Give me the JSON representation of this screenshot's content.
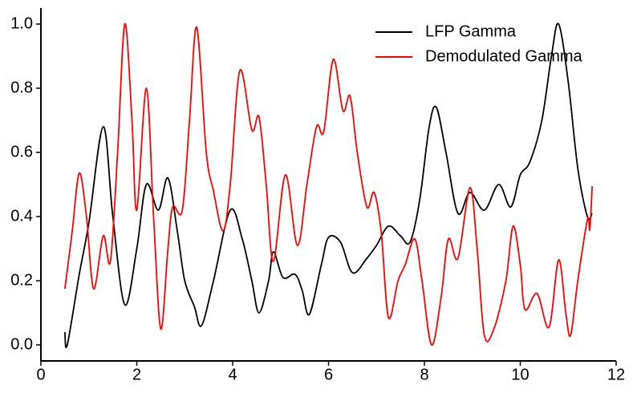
{
  "chart_data": {
    "type": "line",
    "xlim": [
      0,
      12
    ],
    "xticks": [
      0,
      2,
      4,
      6,
      8,
      10,
      12
    ],
    "ylim": [
      -0.05,
      1.05
    ],
    "yticks": [
      {
        "value": 0,
        "label": "0.0"
      },
      0.2,
      0.4,
      0.6,
      0.8,
      {
        "value": 1,
        "label": "1.0"
      }
    ],
    "legend": "upper right",
    "series": [
      {
        "name": "LFP Gamma",
        "color": "#000000",
        "x": [
          0.5,
          0.55,
          0.8,
          1.0,
          1.3,
          1.5,
          1.75,
          2.0,
          2.2,
          2.45,
          2.65,
          2.85,
          3.0,
          3.2,
          3.35,
          3.6,
          3.95,
          4.2,
          4.4,
          4.55,
          4.75,
          4.85,
          5.05,
          5.3,
          5.45,
          5.6,
          5.85,
          6.0,
          6.25,
          6.5,
          6.8,
          7.0,
          7.25,
          7.5,
          7.7,
          7.9,
          8.1,
          8.25,
          8.45,
          8.7,
          8.95,
          9.25,
          9.55,
          9.8,
          10.0,
          10.2,
          10.45,
          10.65,
          10.8,
          11.0,
          11.2,
          11.4,
          11.5
        ],
        "values": [
          0.04,
          0.0,
          0.22,
          0.38,
          0.68,
          0.4,
          0.125,
          0.3,
          0.5,
          0.42,
          0.52,
          0.35,
          0.2,
          0.12,
          0.06,
          0.2,
          0.42,
          0.33,
          0.2,
          0.1,
          0.2,
          0.29,
          0.21,
          0.22,
          0.17,
          0.095,
          0.25,
          0.335,
          0.32,
          0.225,
          0.27,
          0.31,
          0.37,
          0.34,
          0.32,
          0.45,
          0.68,
          0.74,
          0.6,
          0.41,
          0.475,
          0.42,
          0.5,
          0.43,
          0.53,
          0.57,
          0.7,
          0.9,
          1.0,
          0.82,
          0.55,
          0.4,
          0.41
        ]
      },
      {
        "name": "Demodulated Gamma",
        "color": "#ff0000",
        "x": [
          0.5,
          0.65,
          0.8,
          0.95,
          1.1,
          1.3,
          1.45,
          1.6,
          1.75,
          1.9,
          2.0,
          2.2,
          2.35,
          2.5,
          2.65,
          2.75,
          2.95,
          3.1,
          3.25,
          3.45,
          3.6,
          3.8,
          3.95,
          4.15,
          4.4,
          4.55,
          4.7,
          4.85,
          5.1,
          5.35,
          5.55,
          5.75,
          5.9,
          6.1,
          6.3,
          6.45,
          6.6,
          6.8,
          6.95,
          7.1,
          7.25,
          7.45,
          7.6,
          7.8,
          7.95,
          8.15,
          8.35,
          8.5,
          8.7,
          8.95,
          9.1,
          9.25,
          9.45,
          9.7,
          9.85,
          10.0,
          10.1,
          10.35,
          10.6,
          10.8,
          10.95,
          11.05,
          11.2,
          11.4,
          11.45,
          11.5
        ],
        "values": [
          0.175,
          0.35,
          0.535,
          0.4,
          0.175,
          0.34,
          0.26,
          0.6,
          1.0,
          0.7,
          0.42,
          0.8,
          0.4,
          0.05,
          0.3,
          0.43,
          0.42,
          0.7,
          0.99,
          0.6,
          0.48,
          0.355,
          0.5,
          0.855,
          0.67,
          0.71,
          0.5,
          0.26,
          0.53,
          0.31,
          0.5,
          0.68,
          0.665,
          0.89,
          0.73,
          0.775,
          0.6,
          0.43,
          0.475,
          0.35,
          0.085,
          0.2,
          0.25,
          0.33,
          0.2,
          0.0,
          0.15,
          0.33,
          0.27,
          0.49,
          0.3,
          0.03,
          0.05,
          0.2,
          0.37,
          0.25,
          0.11,
          0.16,
          0.055,
          0.265,
          0.1,
          0.03,
          0.2,
          0.39,
          0.36,
          0.495
        ]
      }
    ]
  }
}
